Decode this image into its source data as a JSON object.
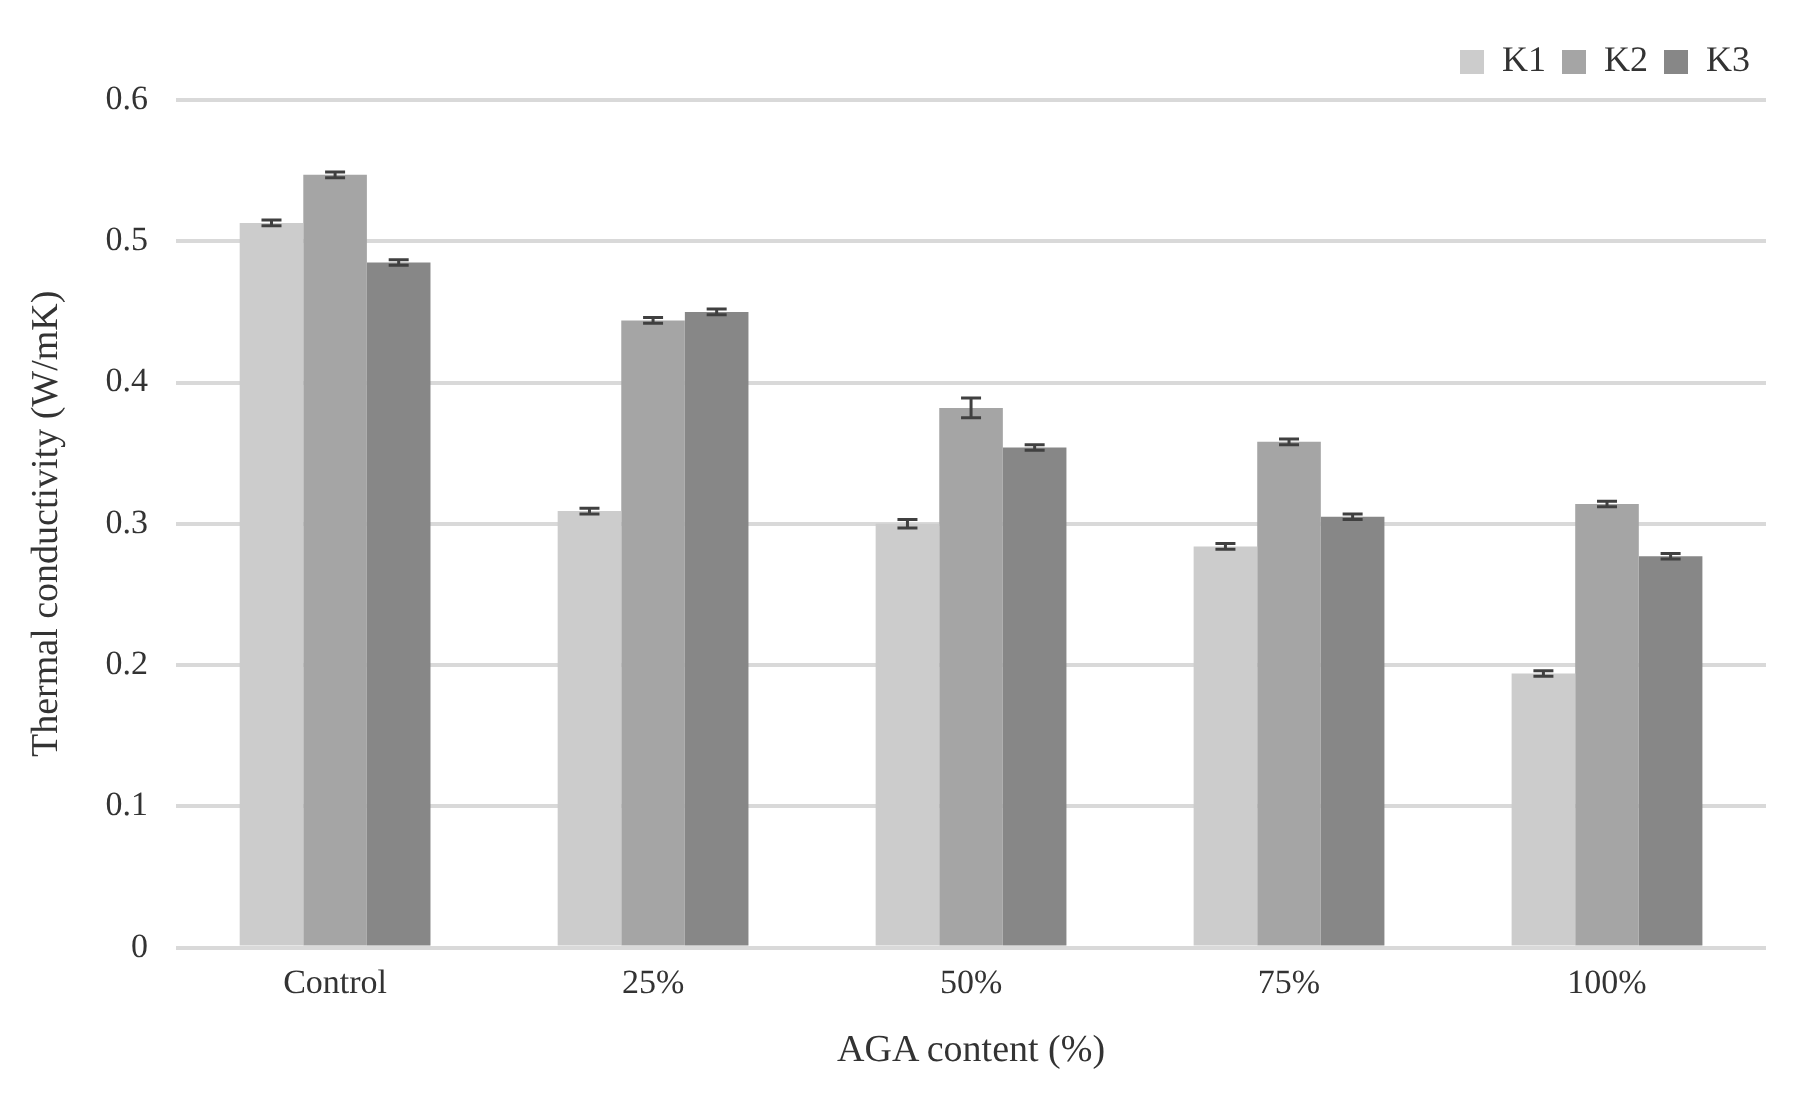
{
  "chart_data": {
    "type": "bar",
    "xlabel": "AGA content (%)",
    "ylabel": "Thermal conductivity (W/mK)",
    "categories": [
      "Control",
      "25%",
      "50%",
      "75%",
      "100%"
    ],
    "series": [
      {
        "name": "K1",
        "color": "#cccccc",
        "values": [
          0.513,
          0.309,
          0.3,
          0.284,
          0.194
        ],
        "errors": [
          0.002,
          0.002,
          0.003,
          0.002,
          0.002
        ]
      },
      {
        "name": "K2",
        "color": "#a5a5a5",
        "values": [
          0.547,
          0.444,
          0.382,
          0.358,
          0.314
        ],
        "errors": [
          0.002,
          0.002,
          0.007,
          0.002,
          0.002
        ]
      },
      {
        "name": "K3",
        "color": "#878787",
        "values": [
          0.485,
          0.45,
          0.354,
          0.305,
          0.277
        ],
        "errors": [
          0.002,
          0.002,
          0.002,
          0.002,
          0.002
        ]
      }
    ],
    "ylim": [
      0,
      0.6
    ],
    "yticks": [
      0,
      0.1,
      0.2,
      0.3,
      0.4,
      0.5,
      0.6
    ],
    "grid": "y",
    "legend": "top right"
  }
}
